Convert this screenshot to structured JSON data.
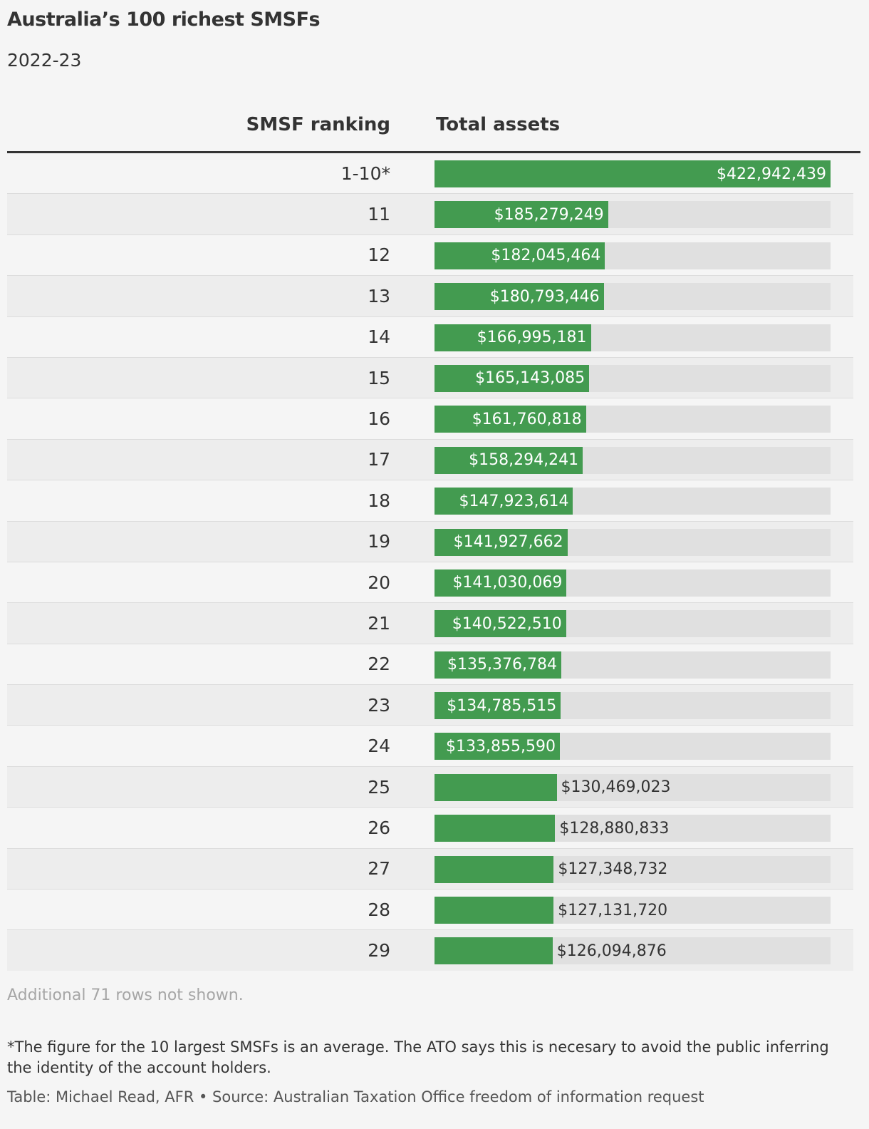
{
  "header": {
    "title": "Australia’s 100 richest SMSFs",
    "subtitle": "2022-23"
  },
  "columns": {
    "rank": "SMSF ranking",
    "assets": "Total assets"
  },
  "colors": {
    "bar": "#439b50",
    "track": "#e0e0e0",
    "label_inside": "#ffffff",
    "label_outside": "#333333"
  },
  "chart_data": {
    "type": "bar",
    "orientation": "horizontal",
    "xlim": [
      0,
      422942439
    ],
    "categories": [
      "1-10*",
      "11",
      "12",
      "13",
      "14",
      "15",
      "16",
      "17",
      "18",
      "19",
      "20",
      "21",
      "22",
      "23",
      "24",
      "25",
      "26",
      "27",
      "28",
      "29"
    ],
    "values": [
      422942439,
      185279249,
      182045464,
      180793446,
      166995181,
      165143085,
      161760818,
      158294241,
      147923614,
      141927662,
      141030069,
      140522510,
      135376784,
      134785515,
      133855590,
      130469023,
      128880833,
      127348732,
      127131720,
      126094876
    ],
    "labels": [
      "$422,942,439",
      "$185,279,249",
      "$182,045,464",
      "$180,793,446",
      "$166,995,181",
      "$165,143,085",
      "$161,760,818",
      "$158,294,241",
      "$147,923,614",
      "$141,927,662",
      "$141,030,069",
      "$140,522,510",
      "$135,376,784",
      "$134,785,515",
      "$133,855,590",
      "$130,469,023",
      "$128,880,833",
      "$127,348,732",
      "$127,131,720",
      "$126,094,876"
    ],
    "label_inside_bar_min_value": 133000000
  },
  "notes": {
    "hidden_rows": "Additional 71 rows not shown.",
    "footnote": "*The figure for the 10 largest SMSFs is an average. The ATO says this is necesary to avoid the public inferring the identity of the account holders.",
    "credit": "Table: Michael Read, AFR • Source: Australian Taxation Office freedom of information request"
  }
}
